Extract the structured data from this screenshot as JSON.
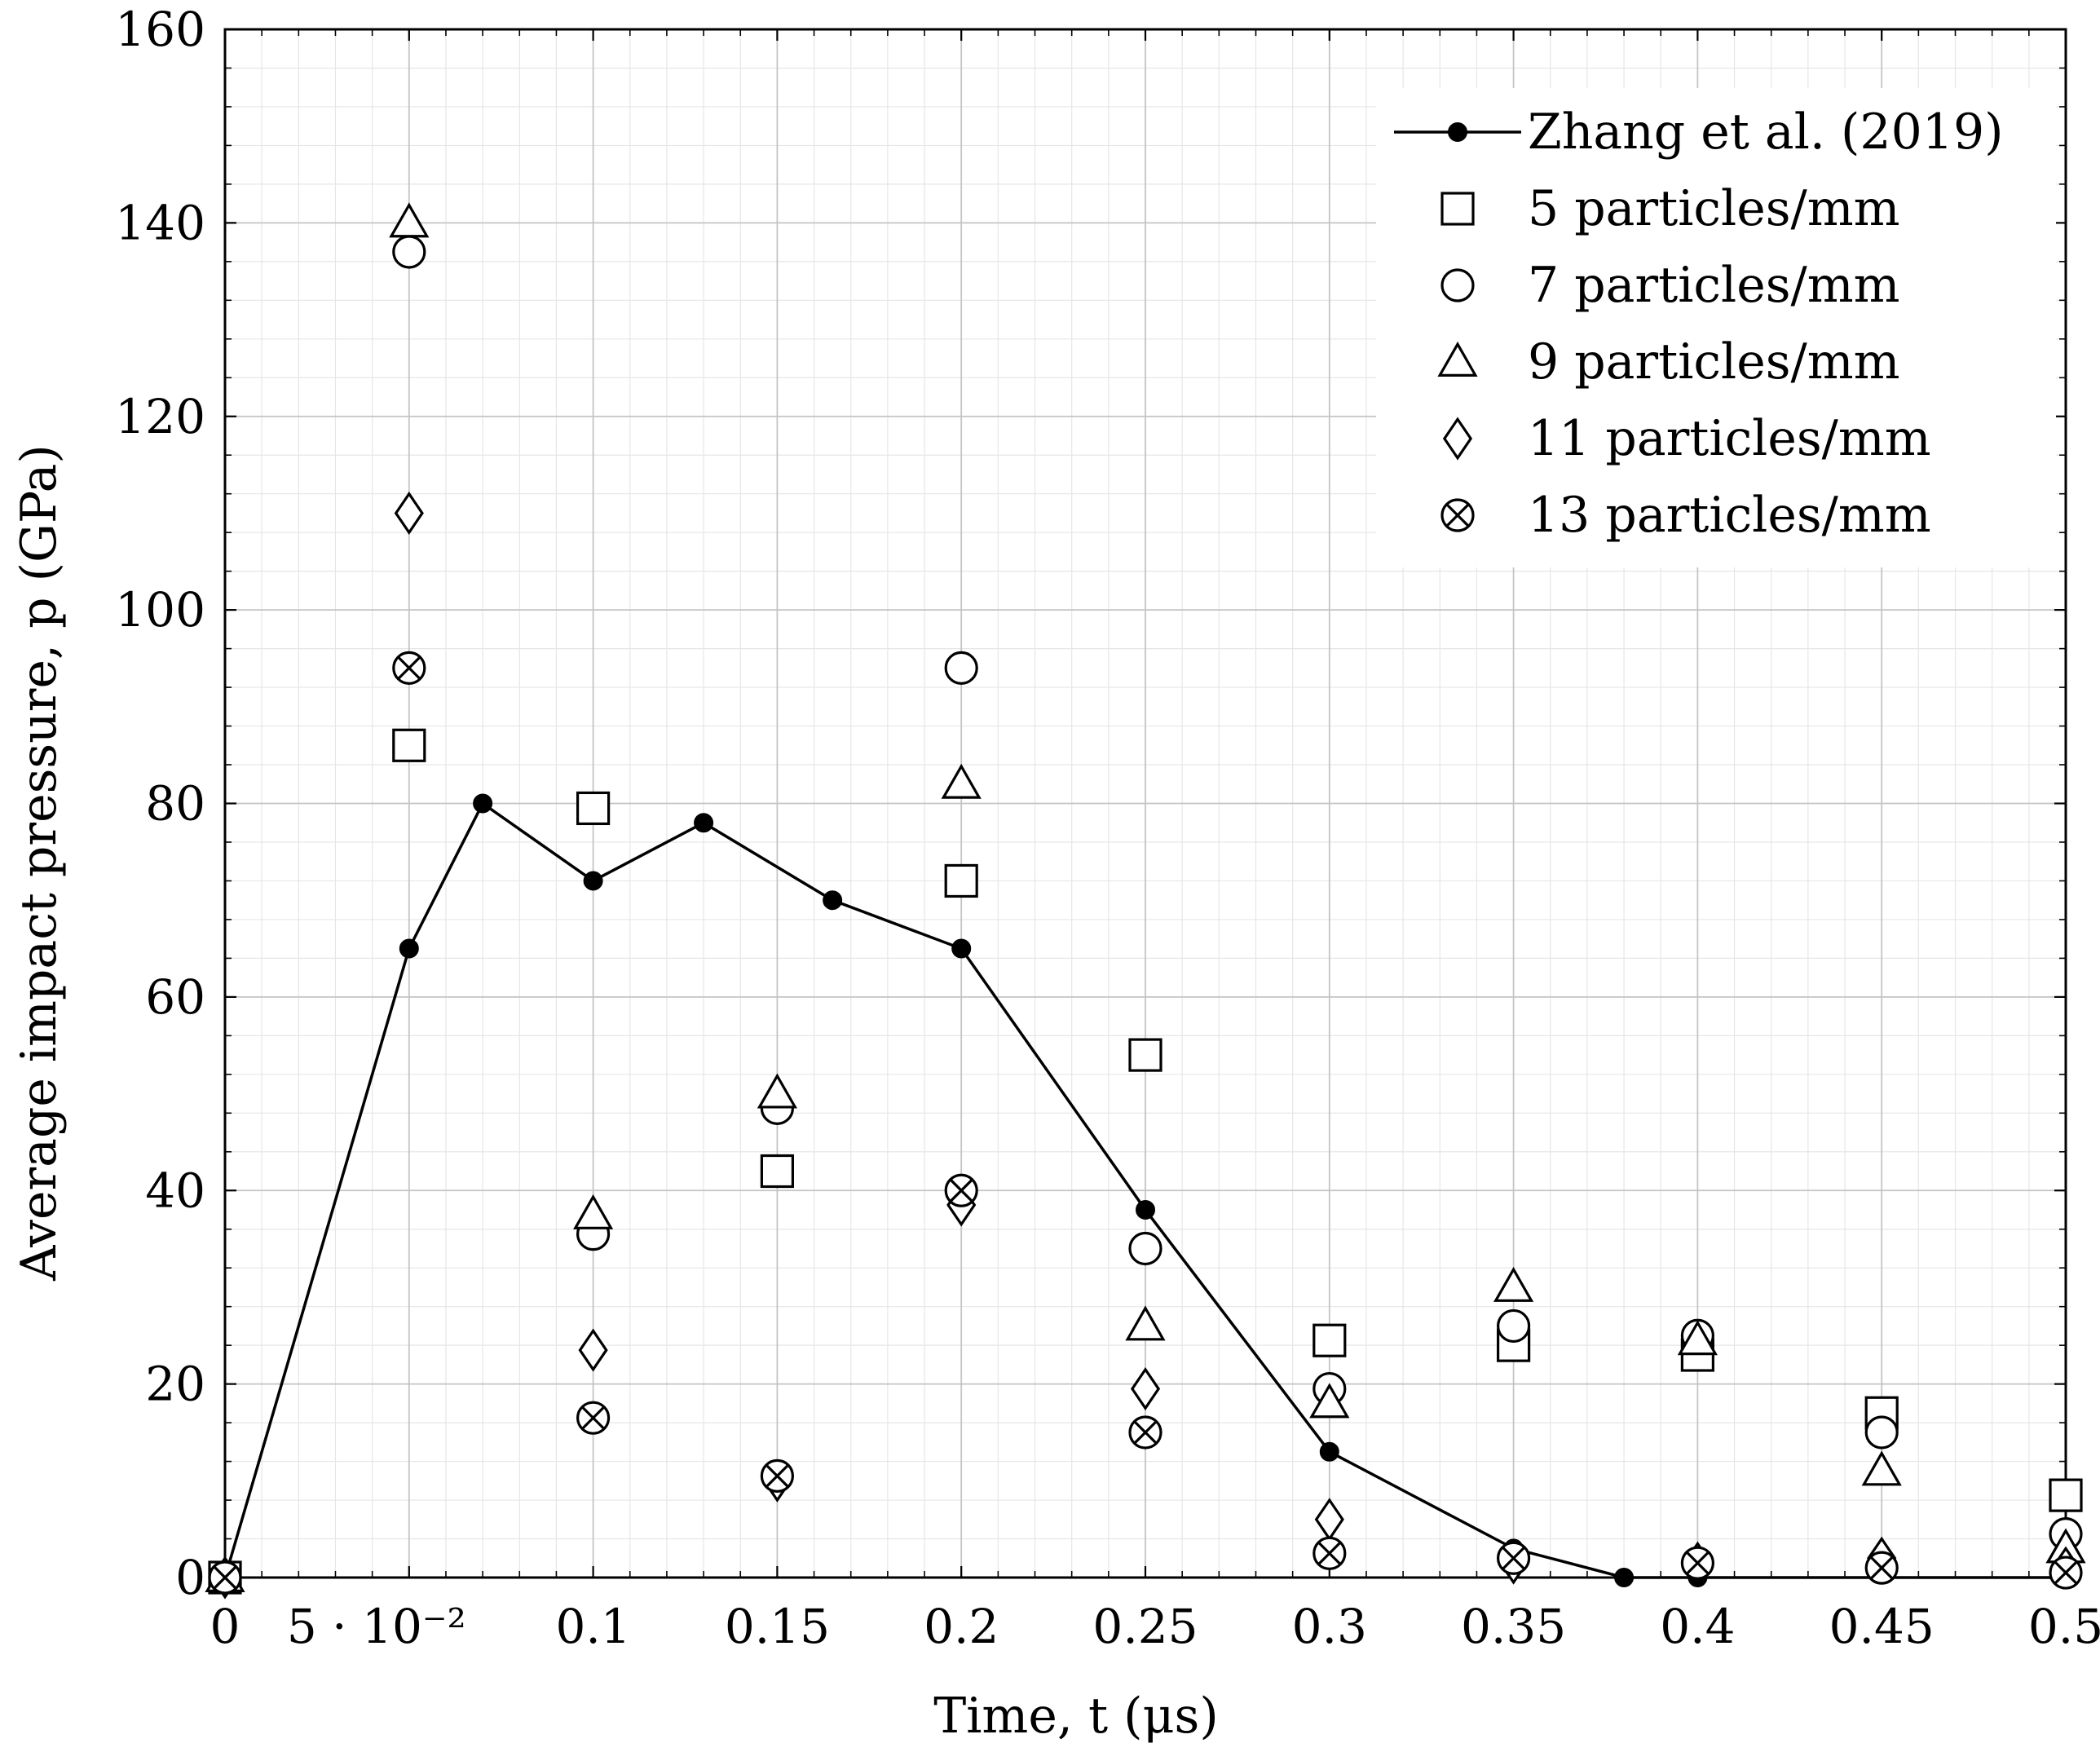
{
  "chart_data": {
    "type": "scatter",
    "title": "",
    "xlabel": "Time, t (μs)",
    "ylabel": "Average impact pressure, p (GPa)",
    "xlim": [
      0,
      0.5
    ],
    "ylim": [
      0,
      160
    ],
    "grid": true,
    "legend_position": "top-right",
    "x_ticks": [
      {
        "value": 0,
        "label": "0"
      },
      {
        "value": 0.05,
        "label": "5 · 10⁻²"
      },
      {
        "value": 0.1,
        "label": "0.1"
      },
      {
        "value": 0.15,
        "label": "0.15"
      },
      {
        "value": 0.2,
        "label": "0.2"
      },
      {
        "value": 0.25,
        "label": "0.25"
      },
      {
        "value": 0.3,
        "label": "0.3"
      },
      {
        "value": 0.35,
        "label": "0.35"
      },
      {
        "value": 0.4,
        "label": "0.4"
      },
      {
        "value": 0.45,
        "label": "0.45"
      },
      {
        "value": 0.5,
        "label": "0.5"
      }
    ],
    "y_ticks": [
      {
        "value": 0,
        "label": "0"
      },
      {
        "value": 20,
        "label": "20"
      },
      {
        "value": 40,
        "label": "40"
      },
      {
        "value": 60,
        "label": "60"
      },
      {
        "value": 80,
        "label": "80"
      },
      {
        "value": 100,
        "label": "100"
      },
      {
        "value": 120,
        "label": "120"
      },
      {
        "value": 140,
        "label": "140"
      },
      {
        "value": 160,
        "label": "160"
      }
    ],
    "series": [
      {
        "name": "Zhang et al. (2019)",
        "marker": "filled-circle",
        "line": true,
        "x": [
          0,
          0.05,
          0.07,
          0.1,
          0.13,
          0.165,
          0.2,
          0.25,
          0.3,
          0.35,
          0.38,
          0.4,
          0.5
        ],
        "y": [
          0,
          65,
          80,
          72,
          78,
          70,
          65,
          38,
          13,
          3,
          0,
          0,
          0
        ]
      },
      {
        "name": "5 particles/mm",
        "marker": "square",
        "line": false,
        "x": [
          0,
          0.05,
          0.1,
          0.15,
          0.2,
          0.25,
          0.3,
          0.35,
          0.4,
          0.45,
          0.5
        ],
        "y": [
          0,
          86,
          79.5,
          42,
          72,
          54,
          24.5,
          24,
          23,
          17,
          8.5
        ]
      },
      {
        "name": "7 particles/mm",
        "marker": "circle",
        "line": false,
        "x": [
          0,
          0.05,
          0.1,
          0.15,
          0.2,
          0.25,
          0.3,
          0.35,
          0.4,
          0.45,
          0.5
        ],
        "y": [
          0,
          137,
          35.5,
          48.5,
          94,
          34,
          19.5,
          26,
          25,
          15,
          4.5
        ]
      },
      {
        "name": "9 particles/mm",
        "marker": "triangle",
        "line": false,
        "x": [
          0,
          0.05,
          0.1,
          0.15,
          0.2,
          0.25,
          0.3,
          0.35,
          0.4,
          0.45,
          0.5
        ],
        "y": [
          0,
          140,
          37.5,
          50,
          82,
          26,
          18,
          30,
          24.5,
          11,
          3
        ]
      },
      {
        "name": "11 particles/mm",
        "marker": "diamond",
        "line": false,
        "x": [
          0,
          0.05,
          0.1,
          0.15,
          0.2,
          0.25,
          0.3,
          0.35,
          0.4,
          0.45,
          0.5
        ],
        "y": [
          0,
          110,
          23.5,
          10,
          38.5,
          19.5,
          6,
          1.5,
          1.5,
          2,
          1
        ]
      },
      {
        "name": "13 particles/mm",
        "marker": "circle-x",
        "line": false,
        "x": [
          0,
          0.05,
          0.1,
          0.15,
          0.2,
          0.25,
          0.3,
          0.35,
          0.4,
          0.45,
          0.5
        ],
        "y": [
          0,
          94,
          16.5,
          10.5,
          40,
          15,
          2.5,
          2,
          1.5,
          1,
          0.5
        ]
      }
    ]
  }
}
